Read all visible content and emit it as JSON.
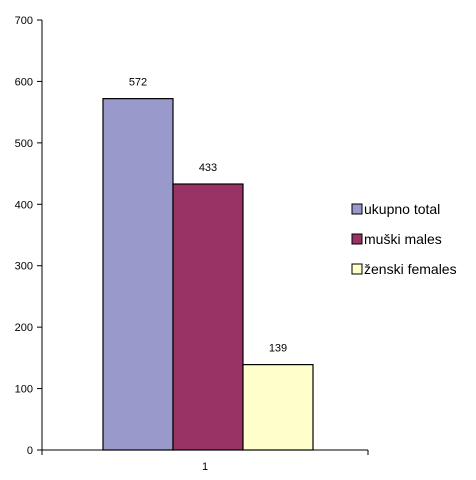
{
  "chart_data": {
    "type": "bar",
    "categories": [
      "1"
    ],
    "series": [
      {
        "name": "ukupno total",
        "values": [
          572
        ],
        "color": "#9999cc"
      },
      {
        "name": "muški males",
        "values": [
          433
        ],
        "color": "#993366"
      },
      {
        "name": "ženski females",
        "values": [
          139
        ],
        "color": "#ffffcc"
      }
    ],
    "ylim": [
      0,
      700
    ],
    "yticks": [
      0,
      100,
      200,
      300,
      400,
      500,
      600,
      700
    ],
    "title": "",
    "xlabel": "",
    "ylabel": "",
    "grid": false,
    "legend_position": "right"
  }
}
